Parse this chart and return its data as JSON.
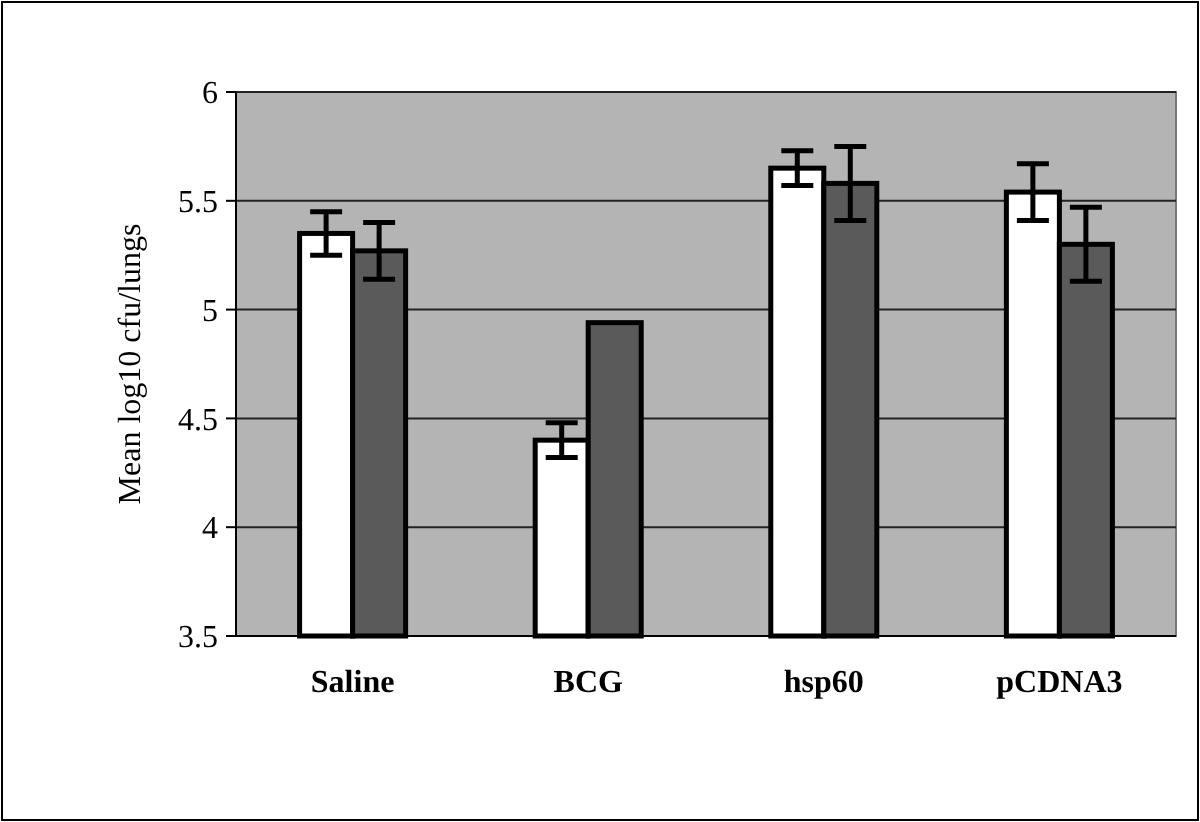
{
  "chart_data": {
    "type": "bar",
    "ylabel": "Mean log10 cfu/lungs",
    "categories": [
      "Saline",
      "BCG",
      "hsp60",
      "pCDNA3"
    ],
    "series": [
      {
        "color": "#ffffff",
        "values": [
          5.35,
          4.4,
          5.65,
          5.54
        ],
        "errors": [
          0.1,
          0.08,
          0.08,
          0.13
        ]
      },
      {
        "color": "#5a5a5a",
        "values": [
          5.27,
          4.94,
          5.58,
          5.3
        ],
        "errors": [
          0.13,
          null,
          0.17,
          0.17
        ]
      }
    ],
    "ylim": [
      3.5,
      6
    ],
    "yticks": [
      3.5,
      4,
      4.5,
      5,
      5.5,
      6
    ],
    "grid": "y"
  }
}
